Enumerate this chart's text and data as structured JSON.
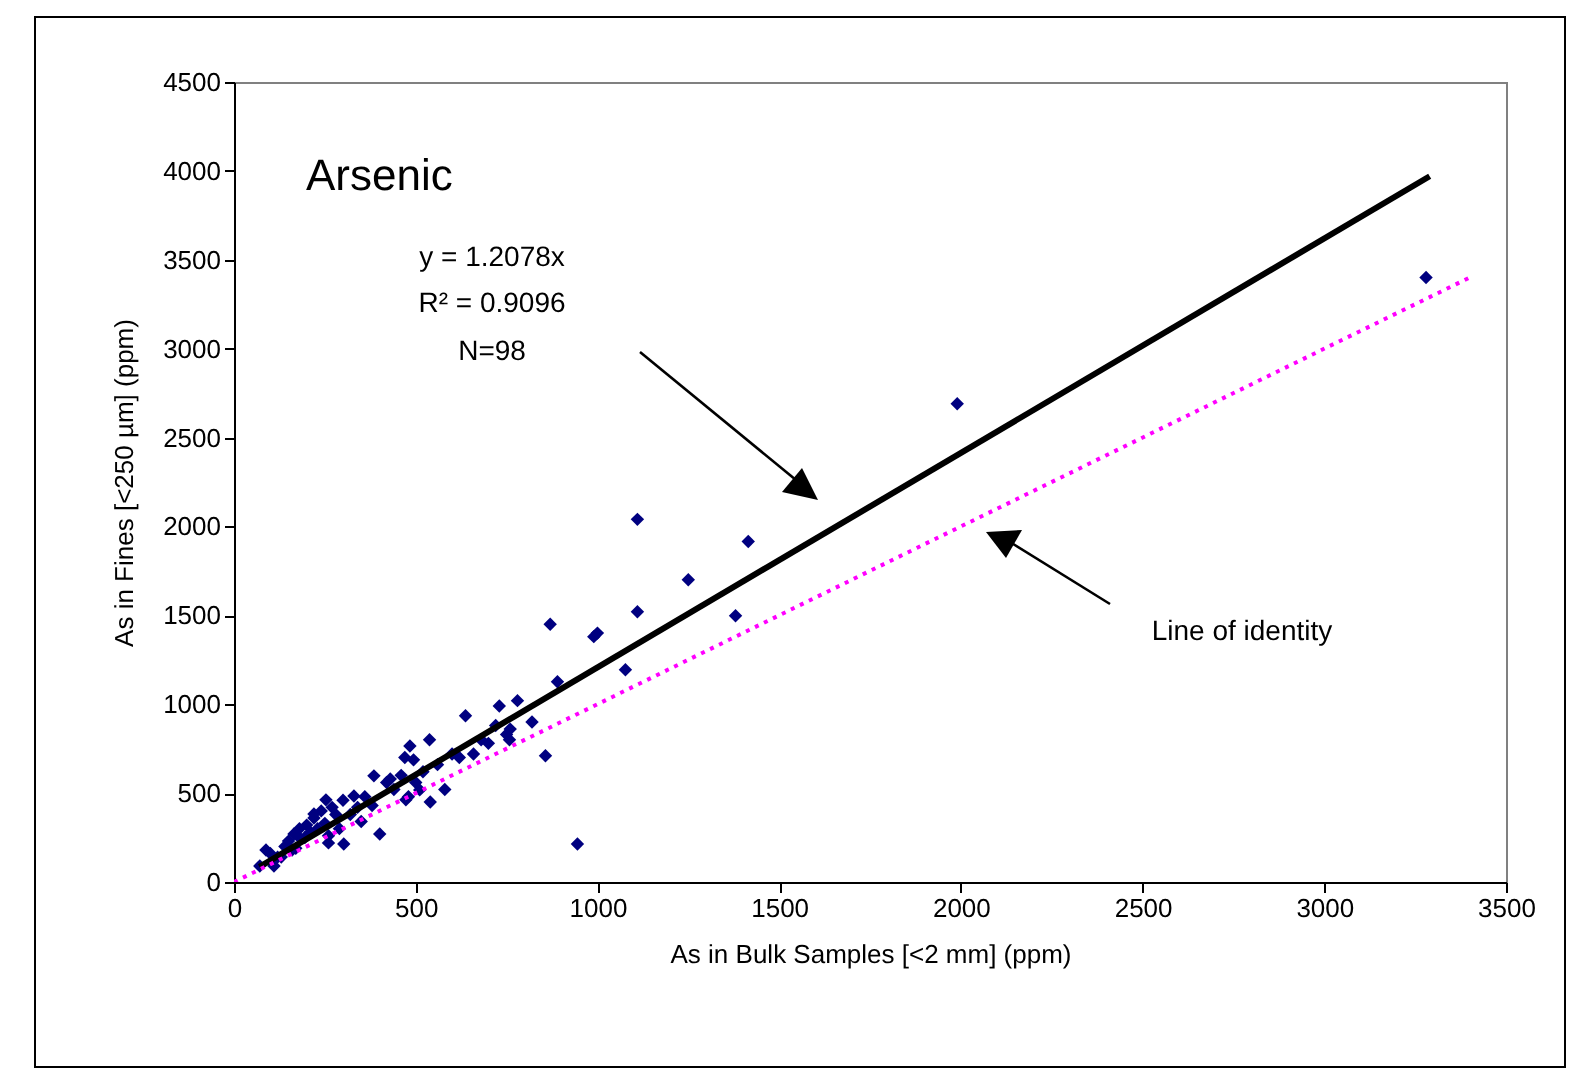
{
  "chart_data": {
    "type": "scatter",
    "title": "Arsenic",
    "xlabel": "As in Bulk Samples [<2 mm] (ppm)",
    "ylabel": "As in Fines [<250 µm] (ppm)",
    "xlim": [
      0,
      3500
    ],
    "xticks": [
      0,
      500,
      1000,
      1500,
      2000,
      2500,
      3000,
      3500
    ],
    "ylim": [
      0,
      4500
    ],
    "yticks": [
      0,
      500,
      1000,
      1500,
      2000,
      2500,
      3000,
      3500,
      4000,
      4500
    ],
    "grid": false,
    "marker": "diamond",
    "annotations": [
      "y = 1.2078x",
      "R² = 0.9096",
      "N=98",
      "Line of identity"
    ],
    "series": [
      {
        "color": "#000080",
        "x": [
          3280,
          1990,
          1110,
          1415,
          1250,
          1110,
          1380,
          1077,
          990,
          1000,
          870,
          945,
          857,
          890,
          730,
          758,
          637,
          659,
          538,
          484,
          385,
          401,
          302,
          330,
          473,
          511,
          494,
          253,
          220,
          165,
          88,
          71,
          110,
          120,
          140,
          150,
          160,
          175,
          180,
          195,
          200,
          210,
          220,
          230,
          240,
          250,
          260,
          270,
          280,
          290,
          300,
          320,
          340,
          360,
          380,
          420,
          440,
          460,
          480,
          500,
          520,
          560,
          600,
          620,
          680,
          700,
          720,
          750,
          780,
          100,
          130,
          170,
          260,
          350,
          430,
          470,
          540,
          580,
          760,
          820
        ],
        "values": [
          3400,
          2690,
          2040,
          1915,
          1700,
          1520,
          1498,
          1194,
          1380,
          1400,
          1450,
          214,
          710,
          1126,
          990,
          800,
          935,
          720,
          800,
          765,
          597,
          270,
          214,
          484,
          462,
          518,
          687,
          462,
          383,
          270,
          180,
          90,
          90,
          140,
          200,
          230,
          180,
          260,
          300,
          250,
          320,
          280,
          360,
          300,
          400,
          330,
          260,
          420,
          380,
          300,
          460,
          380,
          420,
          480,
          430,
          560,
          520,
          600,
          480,
          560,
          620,
          660,
          720,
          700,
          800,
          780,
          880,
          830,
          1020,
          160,
          140,
          190,
          220,
          340,
          580,
          700,
          450,
          520,
          860,
          900
        ]
      },
      {
        "type": "line",
        "color": "#000000",
        "line_style": "solid",
        "marker": "none",
        "x": [
          70,
          3290
        ],
        "values": [
          85,
          3970
        ]
      },
      {
        "type": "line",
        "color": "#ff00ff",
        "line_style": "dotted",
        "marker": "none",
        "x": [
          0,
          3400
        ],
        "values": [
          0,
          3400
        ]
      }
    ]
  }
}
